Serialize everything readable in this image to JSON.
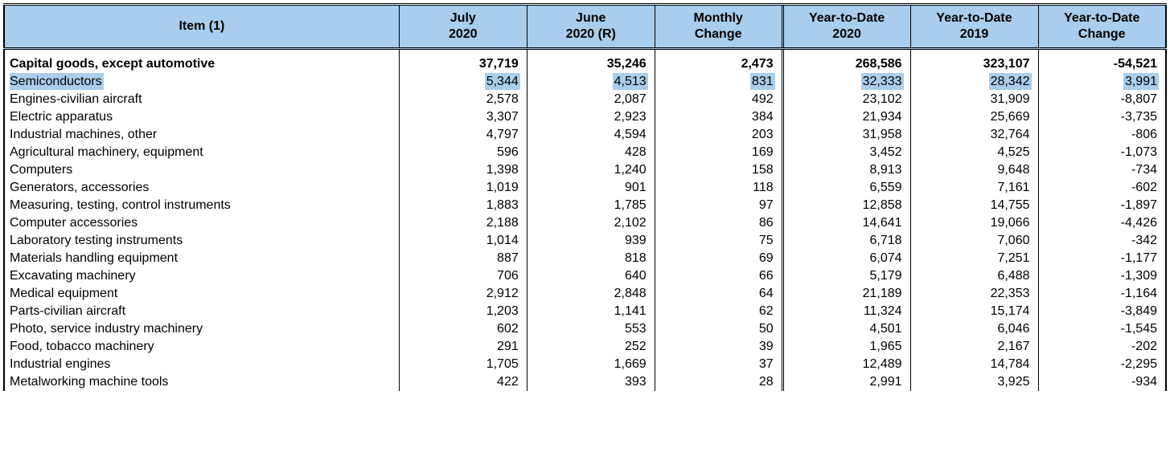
{
  "table": {
    "type": "table",
    "header_bg": "#a9cdec",
    "highlight_bg": "#a9cdec",
    "border_color": "#000000",
    "background_color": "#ffffff",
    "font_family": "Arial",
    "header_fontsize": 16,
    "cell_fontsize": 16,
    "columns": [
      {
        "label_line1": "Item (1)",
        "label_line2": "",
        "align": "center",
        "width": "34%"
      },
      {
        "label_line1": "July",
        "label_line2": "2020",
        "align": "right",
        "width": "11%"
      },
      {
        "label_line1": "June",
        "label_line2": "2020 (R)",
        "align": "right",
        "width": "11%"
      },
      {
        "label_line1": "Monthly",
        "label_line2": "Change",
        "align": "right",
        "width": "11%"
      },
      {
        "label_line1": "Year-to-Date",
        "label_line2": "2020",
        "align": "right",
        "width": "11%",
        "dbl_left": true
      },
      {
        "label_line1": "Year-to-Date",
        "label_line2": "2019",
        "align": "right",
        "width": "11%"
      },
      {
        "label_line1": "Year-to-Date",
        "label_line2": "Change",
        "align": "right",
        "width": "11%"
      }
    ],
    "category_row": {
      "label": "Capital goods, except automotive",
      "values": [
        "37,719",
        "35,246",
        "2,473",
        "268,586",
        "323,107",
        "-54,521"
      ]
    },
    "highlighted_row_index": 0,
    "rows": [
      {
        "label": "Semiconductors",
        "values": [
          "5,344",
          "4,513",
          "831",
          "32,333",
          "28,342",
          "3,991"
        ]
      },
      {
        "label": "Engines-civilian aircraft",
        "values": [
          "2,578",
          "2,087",
          "492",
          "23,102",
          "31,909",
          "-8,807"
        ]
      },
      {
        "label": "Electric apparatus",
        "values": [
          "3,307",
          "2,923",
          "384",
          "21,934",
          "25,669",
          "-3,735"
        ]
      },
      {
        "label": "Industrial machines, other",
        "values": [
          "4,797",
          "4,594",
          "203",
          "31,958",
          "32,764",
          "-806"
        ]
      },
      {
        "label": "Agricultural machinery, equipment",
        "values": [
          "596",
          "428",
          "169",
          "3,452",
          "4,525",
          "-1,073"
        ]
      },
      {
        "label": "Computers",
        "values": [
          "1,398",
          "1,240",
          "158",
          "8,913",
          "9,648",
          "-734"
        ]
      },
      {
        "label": "Generators, accessories",
        "values": [
          "1,019",
          "901",
          "118",
          "6,559",
          "7,161",
          "-602"
        ]
      },
      {
        "label": "Measuring, testing, control instruments",
        "values": [
          "1,883",
          "1,785",
          "97",
          "12,858",
          "14,755",
          "-1,897"
        ]
      },
      {
        "label": "Computer accessories",
        "values": [
          "2,188",
          "2,102",
          "86",
          "14,641",
          "19,066",
          "-4,426"
        ]
      },
      {
        "label": "Laboratory testing instruments",
        "values": [
          "1,014",
          "939",
          "75",
          "6,718",
          "7,060",
          "-342"
        ]
      },
      {
        "label": "Materials handling equipment",
        "values": [
          "887",
          "818",
          "69",
          "6,074",
          "7,251",
          "-1,177"
        ]
      },
      {
        "label": "Excavating machinery",
        "values": [
          "706",
          "640",
          "66",
          "5,179",
          "6,488",
          "-1,309"
        ]
      },
      {
        "label": "Medical equipment",
        "values": [
          "2,912",
          "2,848",
          "64",
          "21,189",
          "22,353",
          "-1,164"
        ]
      },
      {
        "label": "Parts-civilian aircraft",
        "values": [
          "1,203",
          "1,141",
          "62",
          "11,324",
          "15,174",
          "-3,849"
        ]
      },
      {
        "label": "Photo, service industry machinery",
        "values": [
          "602",
          "553",
          "50",
          "4,501",
          "6,046",
          "-1,545"
        ]
      },
      {
        "label": "Food, tobacco machinery",
        "values": [
          "291",
          "252",
          "39",
          "1,965",
          "2,167",
          "-202"
        ]
      },
      {
        "label": "Industrial engines",
        "values": [
          "1,705",
          "1,669",
          "37",
          "12,489",
          "14,784",
          "-2,295"
        ]
      },
      {
        "label": "Metalworking machine tools",
        "values": [
          "422",
          "393",
          "28",
          "2,991",
          "3,925",
          "-934"
        ]
      }
    ]
  }
}
